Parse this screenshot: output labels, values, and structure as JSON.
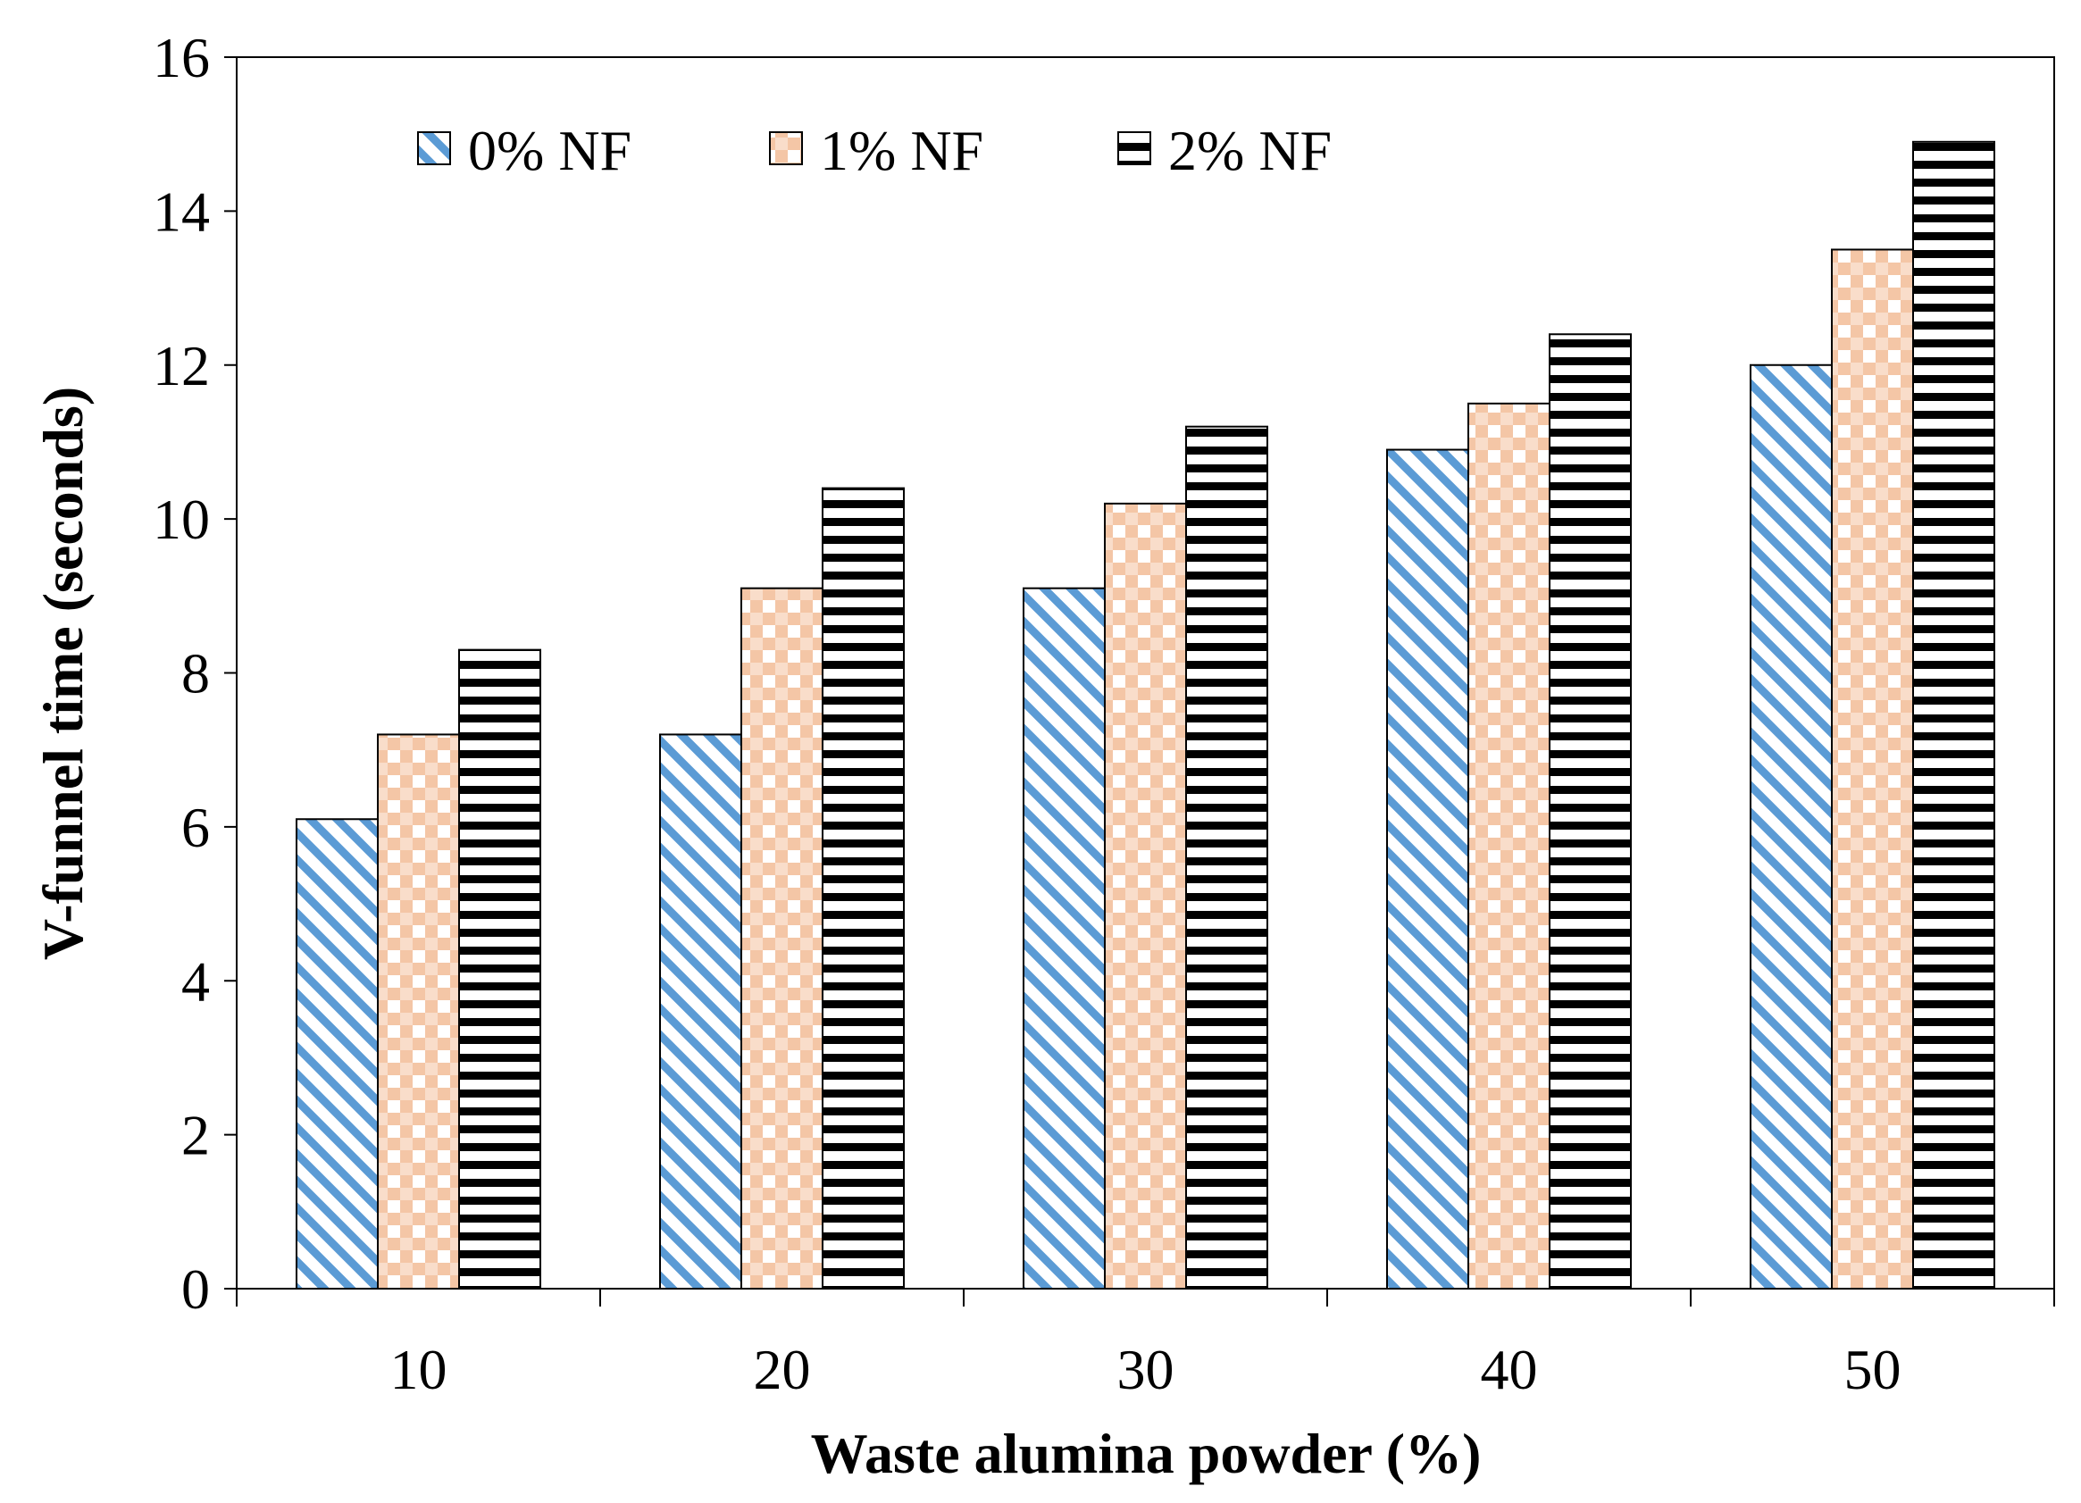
{
  "chart_data": {
    "type": "bar",
    "title": "",
    "xlabel": "Waste alumina powder (%)",
    "ylabel": "V-funnel time (seconds)",
    "categories": [
      "10",
      "20",
      "30",
      "40",
      "50"
    ],
    "ylim": [
      0,
      16
    ],
    "yticks": [
      "0",
      "2",
      "4",
      "6",
      "8",
      "10",
      "12",
      "14",
      "16"
    ],
    "grid": false,
    "legend_position": "top-left",
    "series": [
      {
        "name": "0% NF",
        "values": [
          6.1,
          7.2,
          9.1,
          10.9,
          12.0
        ],
        "pattern": "diagonal-stripes",
        "color": "#5b9bd5"
      },
      {
        "name": "1% NF",
        "values": [
          7.2,
          9.1,
          10.2,
          11.5,
          13.5
        ],
        "pattern": "checker",
        "color": "#f4c6a6"
      },
      {
        "name": "2% NF",
        "values": [
          8.3,
          10.4,
          11.2,
          12.4,
          14.9
        ],
        "pattern": "horizontal-stripes",
        "color": "#000000"
      }
    ]
  }
}
